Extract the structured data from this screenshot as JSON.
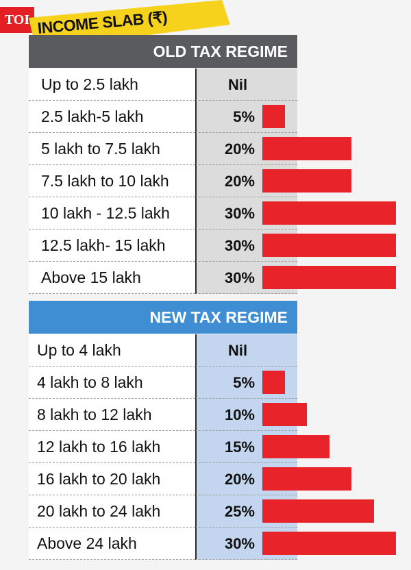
{
  "source_logo": "TOI",
  "banner": {
    "title": "INCOME SLAB (₹)"
  },
  "chart_data": [
    {
      "type": "bar",
      "title": "OLD TAX REGIME",
      "categories": [
        "Up to 2.5 lakh",
        "2.5 lakh-5 lakh",
        "5 lakh to 7.5 lakh",
        "7.5 lakh to 10 lakh",
        "10 lakh - 12.5 lakh",
        "12.5 lakh- 15 lakh",
        "Above 15 lakh"
      ],
      "labels": [
        "Nil",
        "5%",
        "20%",
        "20%",
        "30%",
        "30%",
        "30%"
      ],
      "values": [
        0,
        5,
        20,
        20,
        30,
        30,
        30
      ],
      "unit": "%"
    },
    {
      "type": "bar",
      "title": "NEW TAX REGIME",
      "categories": [
        "Up to 4 lakh",
        "4 lakh to 8 lakh",
        "8 lakh to 12 lakh",
        "12 lakh to 16 lakh",
        "16 lakh to 20 lakh",
        "20 lakh to 24 lakh",
        "Above 24 lakh"
      ],
      "labels": [
        "Nil",
        "5%",
        "10%",
        "15%",
        "20%",
        "25%",
        "30%"
      ],
      "values": [
        0,
        5,
        10,
        15,
        20,
        25,
        30
      ],
      "unit": "%"
    }
  ],
  "colors": {
    "bar": "#e8232a",
    "old_header": "#5a5b5f",
    "new_header": "#3f8ed3",
    "banner": "#f7d21c",
    "logo": "#e31e24"
  }
}
